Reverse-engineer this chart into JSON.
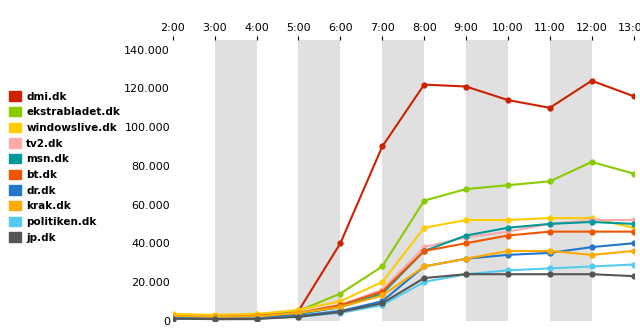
{
  "x_labels": [
    "2:00",
    "3:00",
    "4:00",
    "5:00",
    "6:00",
    "7:00",
    "8:00",
    "9:00",
    "10:00",
    "11:00",
    "12:00",
    "13:00"
  ],
  "x_ticks": [
    2,
    3,
    4,
    5,
    6,
    7,
    8,
    9,
    10,
    11,
    12,
    13
  ],
  "ylim": [
    0,
    145000
  ],
  "yticks": [
    0,
    20000,
    40000,
    60000,
    80000,
    100000,
    120000,
    140000
  ],
  "ytick_labels": [
    "0",
    "20.000",
    "40.000",
    "60.000",
    "80.000",
    "100.000",
    "120.000",
    "140.000"
  ],
  "background_color": "#ffffff",
  "stripe_color": "#e0e0e0",
  "stripe_indices": [
    1,
    3,
    5,
    7,
    9
  ],
  "series": [
    {
      "name": "dmi.dk",
      "color": "#cc2200",
      "values": [
        2000,
        1500,
        1800,
        5000,
        40000,
        90000,
        122000,
        121000,
        114000,
        110000,
        124000,
        116000
      ]
    },
    {
      "name": "ekstrabladet.dk",
      "color": "#88cc00",
      "values": [
        3000,
        2500,
        3000,
        5000,
        14000,
        28000,
        62000,
        68000,
        70000,
        72000,
        82000,
        76000
      ]
    },
    {
      "name": "windowslive.dk",
      "color": "#ffcc00",
      "values": [
        3500,
        3000,
        3500,
        5500,
        10000,
        20000,
        48000,
        52000,
        52000,
        53000,
        53000,
        48000
      ]
    },
    {
      "name": "tv2.dk",
      "color": "#ffaaaa",
      "values": [
        2500,
        2000,
        2500,
        4000,
        8000,
        16000,
        38000,
        43000,
        46000,
        50000,
        52000,
        52000
      ]
    },
    {
      "name": "msn.dk",
      "color": "#009999",
      "values": [
        2000,
        1800,
        2000,
        3500,
        7000,
        14000,
        36000,
        44000,
        48000,
        50000,
        51000,
        50000
      ]
    },
    {
      "name": "bt.dk",
      "color": "#ee5500",
      "values": [
        2000,
        1800,
        2500,
        4000,
        8000,
        15000,
        36000,
        40000,
        44000,
        46000,
        46000,
        46000
      ]
    },
    {
      "name": "dr.dk",
      "color": "#2277cc",
      "values": [
        1500,
        1200,
        1500,
        2500,
        5000,
        10000,
        28000,
        32000,
        34000,
        35000,
        38000,
        40000
      ]
    },
    {
      "name": "krak.dk",
      "color": "#ffaa00",
      "values": [
        2500,
        2000,
        2200,
        4000,
        7000,
        13000,
        28000,
        32000,
        36000,
        36000,
        34000,
        36000
      ]
    },
    {
      "name": "politiken.dk",
      "color": "#55ccee",
      "values": [
        1000,
        800,
        1000,
        2000,
        4000,
        8000,
        20000,
        24000,
        26000,
        27000,
        28000,
        29000
      ]
    },
    {
      "name": "jp.dk",
      "color": "#555555",
      "values": [
        1000,
        800,
        900,
        2000,
        4500,
        9000,
        22000,
        24000,
        24000,
        24000,
        24000,
        23000
      ]
    }
  ]
}
